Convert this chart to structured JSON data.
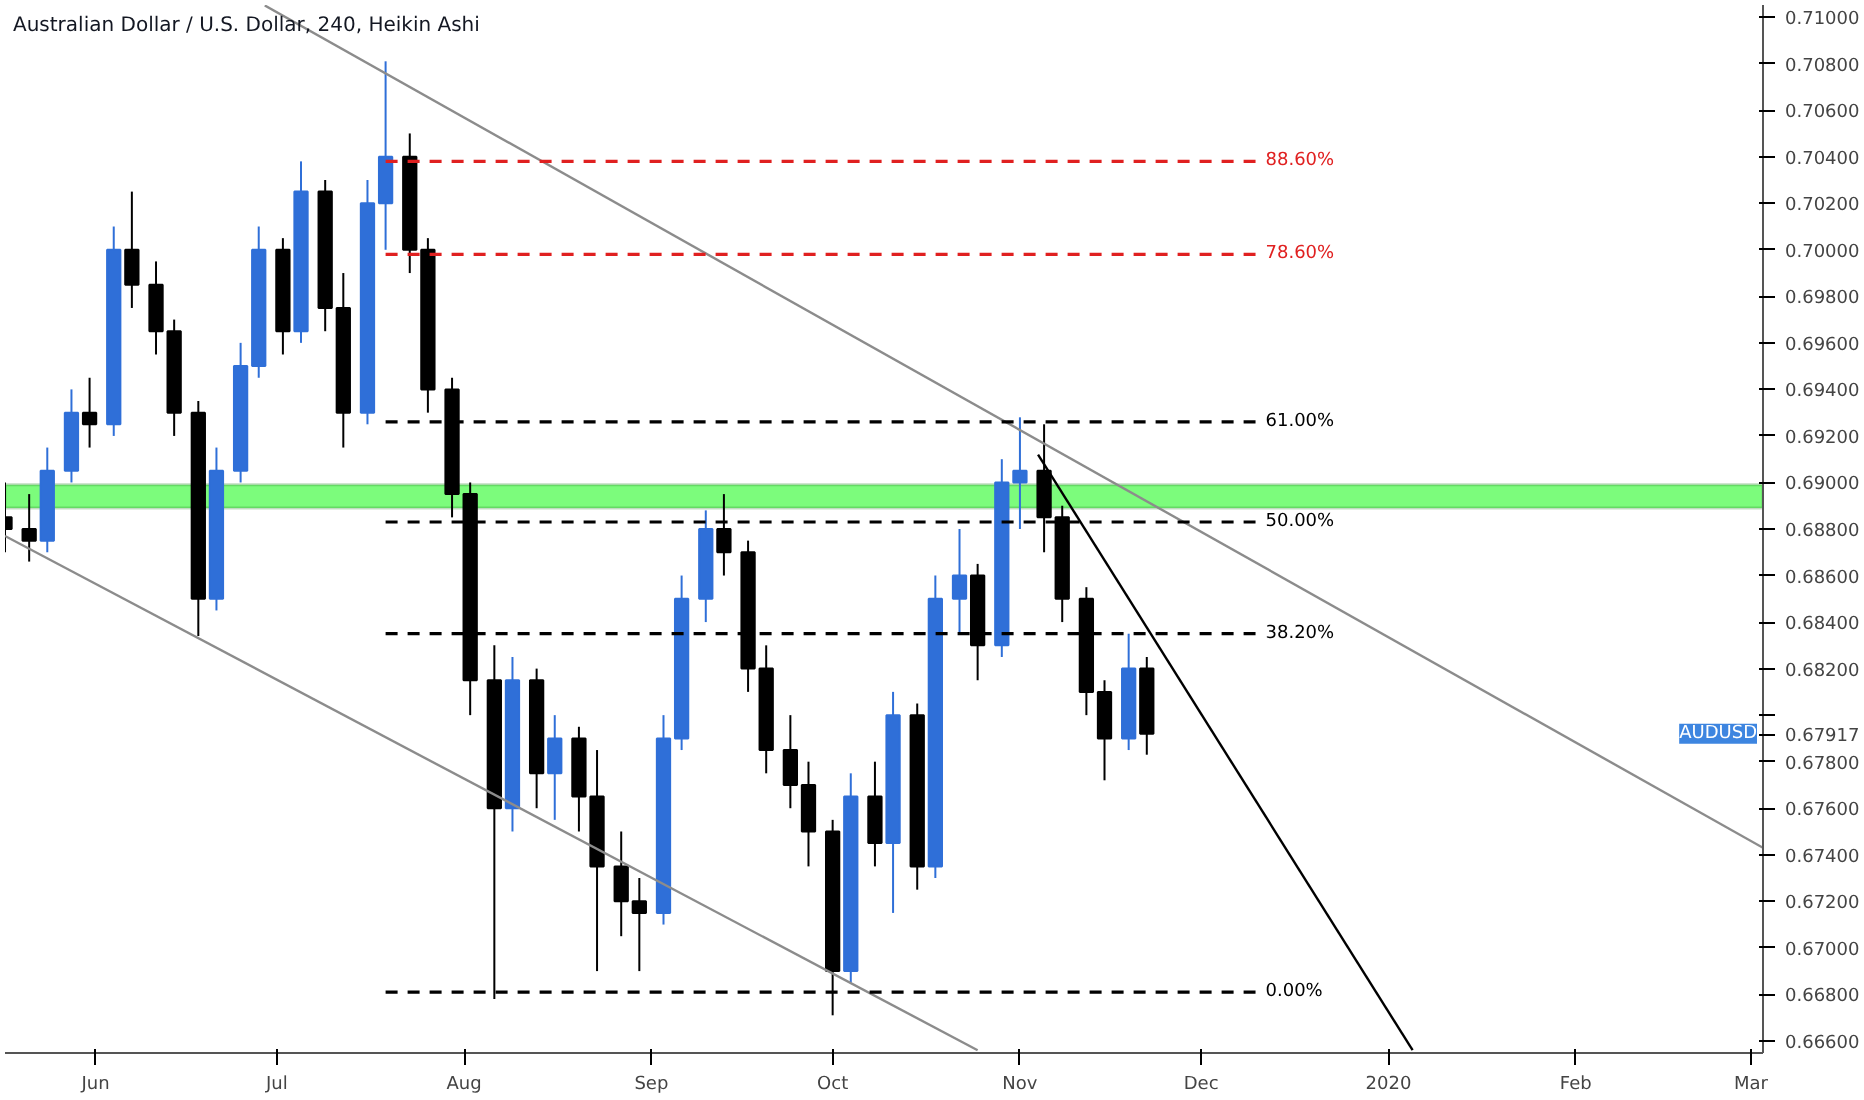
{
  "chart_data": {
    "type": "candlestick",
    "title": "Australian Dollar / U.S. Dollar, 240, Heikin Ashi",
    "series": [
      {
        "name": "AUDUSD",
        "x": [
          "2019-05-17",
          "2019-05-21",
          "2019-05-24",
          "2019-05-28",
          "2019-05-31",
          "2019-06-04",
          "2019-06-07",
          "2019-06-11",
          "2019-06-14",
          "2019-06-18",
          "2019-06-21",
          "2019-06-25",
          "2019-06-28",
          "2019-07-02",
          "2019-07-05",
          "2019-07-09",
          "2019-07-12",
          "2019-07-16",
          "2019-07-19",
          "2019-07-23",
          "2019-07-26",
          "2019-07-30",
          "2019-08-02",
          "2019-08-06",
          "2019-08-09",
          "2019-08-13",
          "2019-08-16",
          "2019-08-20",
          "2019-08-23",
          "2019-08-27",
          "2019-08-30",
          "2019-09-03",
          "2019-09-06",
          "2019-09-10",
          "2019-09-13",
          "2019-09-17",
          "2019-09-20",
          "2019-09-24",
          "2019-09-27",
          "2019-10-01",
          "2019-10-04",
          "2019-10-08",
          "2019-10-11",
          "2019-10-15",
          "2019-10-18",
          "2019-10-22",
          "2019-10-25",
          "2019-10-29",
          "2019-11-01",
          "2019-11-05",
          "2019-11-08",
          "2019-11-12",
          "2019-11-15",
          "2019-11-19",
          "2019-11-22"
        ],
        "ohlc": [
          [
            0.6885,
            0.69,
            0.687,
            0.688
          ],
          [
            0.688,
            0.6895,
            0.6866,
            0.6875
          ],
          [
            0.6875,
            0.6915,
            0.687,
            0.6905
          ],
          [
            0.6905,
            0.694,
            0.69,
            0.693
          ],
          [
            0.693,
            0.6945,
            0.6915,
            0.6925
          ],
          [
            0.6925,
            0.701,
            0.692,
            0.7
          ],
          [
            0.7,
            0.7025,
            0.6975,
            0.6985
          ],
          [
            0.6985,
            0.6995,
            0.6955,
            0.6965
          ],
          [
            0.6965,
            0.697,
            0.692,
            0.693
          ],
          [
            0.693,
            0.6935,
            0.6834,
            0.685
          ],
          [
            0.685,
            0.6915,
            0.6845,
            0.6905
          ],
          [
            0.6905,
            0.696,
            0.69,
            0.695
          ],
          [
            0.695,
            0.701,
            0.6945,
            0.7
          ],
          [
            0.7,
            0.7005,
            0.6955,
            0.6965
          ],
          [
            0.6965,
            0.7038,
            0.696,
            0.7025
          ],
          [
            0.7025,
            0.703,
            0.6965,
            0.6975
          ],
          [
            0.6975,
            0.699,
            0.6915,
            0.693
          ],
          [
            0.693,
            0.703,
            0.6925,
            0.702
          ],
          [
            0.702,
            0.7081,
            0.7,
            0.704
          ],
          [
            0.704,
            0.705,
            0.699,
            0.7
          ],
          [
            0.7,
            0.7005,
            0.693,
            0.694
          ],
          [
            0.694,
            0.6945,
            0.6885,
            0.6895
          ],
          [
            0.6895,
            0.69,
            0.68,
            0.6815
          ],
          [
            0.6815,
            0.683,
            0.6678,
            0.676
          ],
          [
            0.676,
            0.6825,
            0.675,
            0.6815
          ],
          [
            0.6815,
            0.682,
            0.676,
            0.6775
          ],
          [
            0.6775,
            0.68,
            0.6755,
            0.679
          ],
          [
            0.679,
            0.6795,
            0.675,
            0.6765
          ],
          [
            0.6765,
            0.6785,
            0.669,
            0.6735
          ],
          [
            0.6735,
            0.675,
            0.6705,
            0.672
          ],
          [
            0.672,
            0.673,
            0.669,
            0.6715
          ],
          [
            0.6715,
            0.68,
            0.671,
            0.679
          ],
          [
            0.679,
            0.686,
            0.6785,
            0.685
          ],
          [
            0.685,
            0.6888,
            0.684,
            0.688
          ],
          [
            0.688,
            0.6895,
            0.686,
            0.687
          ],
          [
            0.687,
            0.6875,
            0.681,
            0.682
          ],
          [
            0.682,
            0.683,
            0.6775,
            0.6785
          ],
          [
            0.6785,
            0.68,
            0.676,
            0.677
          ],
          [
            0.677,
            0.678,
            0.6735,
            0.675
          ],
          [
            0.675,
            0.6755,
            0.6671,
            0.669
          ],
          [
            0.669,
            0.6775,
            0.6685,
            0.6765
          ],
          [
            0.6765,
            0.678,
            0.6735,
            0.6745
          ],
          [
            0.6745,
            0.681,
            0.6715,
            0.68
          ],
          [
            0.68,
            0.6805,
            0.6725,
            0.6735
          ],
          [
            0.6735,
            0.686,
            0.673,
            0.685
          ],
          [
            0.685,
            0.688,
            0.6835,
            0.686
          ],
          [
            0.686,
            0.6865,
            0.6815,
            0.683
          ],
          [
            0.683,
            0.691,
            0.6825,
            0.69
          ],
          [
            0.69,
            0.6928,
            0.688,
            0.6905
          ],
          [
            0.6905,
            0.6925,
            0.687,
            0.6885
          ],
          [
            0.6885,
            0.689,
            0.684,
            0.685
          ],
          [
            0.685,
            0.6855,
            0.68,
            0.681
          ],
          [
            0.681,
            0.6815,
            0.6772,
            0.679
          ],
          [
            0.679,
            0.6835,
            0.6785,
            0.682
          ],
          [
            0.682,
            0.6825,
            0.6783,
            0.6792
          ]
        ],
        "colors": [
          "#000000",
          "#000000",
          "#2f6fd8",
          "#2f6fd8",
          "#000000",
          "#2f6fd8",
          "#000000",
          "#000000",
          "#000000",
          "#000000",
          "#2f6fd8",
          "#2f6fd8",
          "#2f6fd8",
          "#000000",
          "#2f6fd8",
          "#000000",
          "#000000",
          "#2f6fd8",
          "#2f6fd8",
          "#000000",
          "#000000",
          "#000000",
          "#000000",
          "#000000",
          "#2f6fd8",
          "#000000",
          "#2f6fd8",
          "#000000",
          "#000000",
          "#000000",
          "#000000",
          "#2f6fd8",
          "#2f6fd8",
          "#2f6fd8",
          "#000000",
          "#000000",
          "#000000",
          "#000000",
          "#000000",
          "#000000",
          "#2f6fd8",
          "#000000",
          "#2f6fd8",
          "#000000",
          "#2f6fd8",
          "#2f6fd8",
          "#000000",
          "#2f6fd8",
          "#2f6fd8",
          "#000000",
          "#000000",
          "#000000",
          "#000000",
          "#2f6fd8",
          "#000000"
        ]
      },
      {
        "type": "line",
        "color": "#8c8c8c",
        "x": [
          "2019-06-29",
          "2020-03-03"
        ],
        "values": [
          0.7105,
          0.6743
        ]
      },
      {
        "type": "line",
        "color": "#8c8c8c",
        "x": [
          "2019-05-17",
          "2019-10-25"
        ],
        "values": [
          0.6877,
          0.6656
        ]
      },
      {
        "type": "line",
        "color": "#000000",
        "x": [
          "2019-11-04",
          "2020-01-05"
        ],
        "values": [
          0.6912,
          0.6656
        ]
      },
      {
        "type": "line",
        "name": "88.60%",
        "color": "#e02020",
        "line_style": "dashed",
        "x": [
          "2019-07-19",
          "2019-12-10"
        ],
        "values": [
          0.7038,
          0.7038
        ]
      },
      {
        "type": "line",
        "name": "78.60%",
        "color": "#e02020",
        "line_style": "dashed",
        "x": [
          "2019-07-19",
          "2019-12-10"
        ],
        "values": [
          0.6998,
          0.6998
        ]
      },
      {
        "type": "line",
        "name": "61.00%",
        "color": "#000000",
        "line_style": "dashed",
        "x": [
          "2019-07-19",
          "2019-12-10"
        ],
        "values": [
          0.6926,
          0.6926
        ]
      },
      {
        "type": "line",
        "name": "50.00%",
        "color": "#000000",
        "line_style": "dashed",
        "x": [
          "2019-07-19",
          "2019-12-10"
        ],
        "values": [
          0.6883,
          0.6883
        ]
      },
      {
        "type": "line",
        "name": "38.20%",
        "color": "#000000",
        "line_style": "dashed",
        "x": [
          "2019-07-19",
          "2019-12-10"
        ],
        "values": [
          0.6835,
          0.6835
        ]
      },
      {
        "type": "line",
        "name": "0.00%",
        "color": "#000000",
        "line_style": "dashed",
        "x": [
          "2019-07-19",
          "2019-12-10"
        ],
        "values": [
          0.6681,
          0.6681
        ]
      }
    ],
    "bands": [
      {
        "axis": "y",
        "from": 0.6889,
        "to": 0.6899,
        "color": "#7cfc7c"
      }
    ],
    "xlim": [
      "2019-05-17",
      "2020-03-03"
    ],
    "xticks": [
      {
        "value": "2019-06-01",
        "label": "Jun"
      },
      {
        "value": "2019-07-01",
        "label": "Jul"
      },
      {
        "value": "2019-08-01",
        "label": "Aug"
      },
      {
        "value": "2019-09-01",
        "label": "Sep"
      },
      {
        "value": "2019-10-01",
        "label": "Oct"
      },
      {
        "value": "2019-11-01",
        "label": "Nov"
      },
      {
        "value": "2019-12-01",
        "label": "Dec"
      },
      {
        "value": "2020-01-01",
        "label": "2020"
      },
      {
        "value": "2020-02-01",
        "label": "Feb"
      },
      {
        "value": "2020-03-01",
        "label": "Mar"
      }
    ],
    "ylim": [
      0.66548,
      0.71052
    ],
    "yticks": [
      {
        "value": 0.666,
        "label": "0.66600"
      },
      {
        "value": 0.668,
        "label": "0.66800"
      },
      {
        "value": 0.67,
        "label": "0.67000"
      },
      {
        "value": 0.672,
        "label": "0.67200"
      },
      {
        "value": 0.674,
        "label": "0.67400"
      },
      {
        "value": 0.676,
        "label": "0.67600"
      },
      {
        "value": 0.678,
        "label": "0.67800"
      },
      {
        "value": 0.67917,
        "label": "0.67917"
      },
      {
        "value": 0.68,
        "label": null
      },
      {
        "value": 0.682,
        "label": "0.68200"
      },
      {
        "value": 0.684,
        "label": "0.68400"
      },
      {
        "value": 0.686,
        "label": "0.68600"
      },
      {
        "value": 0.688,
        "label": "0.68800"
      },
      {
        "value": 0.69,
        "label": "0.69000"
      },
      {
        "value": 0.692,
        "label": "0.69200"
      },
      {
        "value": 0.694,
        "label": "0.69400"
      },
      {
        "value": 0.696,
        "label": "0.69600"
      },
      {
        "value": 0.698,
        "label": "0.69800"
      },
      {
        "value": 0.7,
        "label": "0.70000"
      },
      {
        "value": 0.702,
        "label": "0.70200"
      },
      {
        "value": 0.704,
        "label": "0.70400"
      },
      {
        "value": 0.706,
        "label": "0.70600"
      },
      {
        "value": 0.708,
        "label": "0.70800"
      },
      {
        "value": 0.71,
        "label": "0.71000"
      }
    ]
  }
}
